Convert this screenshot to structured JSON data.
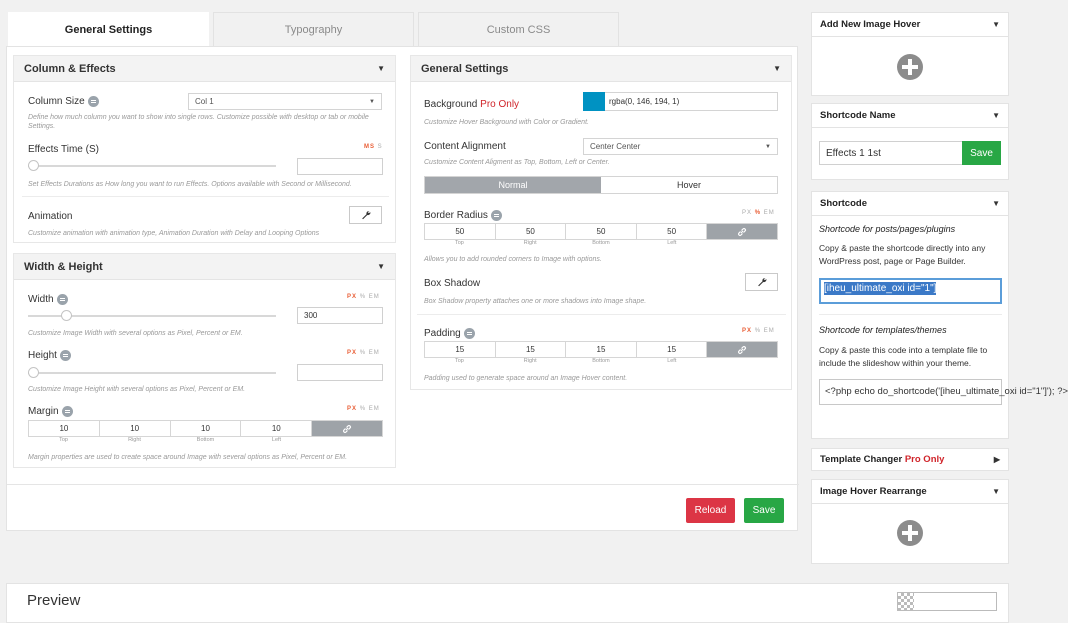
{
  "tabs": [
    {
      "label": "General Settings",
      "active": true
    },
    {
      "label": "Typography",
      "active": false
    },
    {
      "label": "Custom CSS",
      "active": false
    }
  ],
  "column_effects": {
    "title": "Column & Effects",
    "column_size": {
      "label": "Column Size",
      "value": "Col 1",
      "hint": "Define how much column you want to show into single rows. Customize possible with desktop or tab or mobile Settings."
    },
    "effects_time": {
      "label": "Effects Time (S)",
      "unit_active": "MS",
      "unit_other": "S",
      "value": "",
      "hint": "Set Effects Durations as How long you want to run Effects. Options available with Second or Millisecond."
    },
    "animation": {
      "label": "Animation",
      "hint": "Customize animation with animation type, Animation Duration with Delay and Looping Options"
    }
  },
  "width_height": {
    "title": "Width & Height",
    "width": {
      "label": "Width",
      "value": "300",
      "hint": "Customize Image Width with several options as Pixel, Percent or EM."
    },
    "height": {
      "label": "Height",
      "value": "",
      "hint": "Customize Image Height with several options as Pixel, Percent or EM."
    },
    "margin": {
      "label": "Margin",
      "values": [
        "10",
        "10",
        "10",
        "10"
      ],
      "sides": [
        "Top",
        "Right",
        "Bottom",
        "Left"
      ],
      "hint": "Margin properties are used to create space around Image with several options as Pixel, Percent or EM."
    },
    "units": [
      "PX",
      "%",
      "EM"
    ]
  },
  "general_settings": {
    "title": "General Settings",
    "background": {
      "label": "Background",
      "pro": "Pro Only",
      "swatch": "#0092c2",
      "value": "rgba(0, 146, 194, 1)",
      "hint": "Customize Hover Background with Color or Gradient."
    },
    "content_alignment": {
      "label": "Content Alignment",
      "value": "Center Center",
      "hint": "Customize Content Aligment as Top, Bottom, Left or Center."
    },
    "state": {
      "normal": "Normal",
      "hover": "Hover"
    },
    "border_radius": {
      "label": "Border Radius",
      "values": [
        "50",
        "50",
        "50",
        "50"
      ],
      "sides": [
        "Top",
        "Right",
        "Bottom",
        "Left"
      ],
      "hint": "Allows you to add rounded corners to Image with options."
    },
    "box_shadow": {
      "label": "Box Shadow",
      "hint": "Box Shadow property attaches one or more shadows into Image shape."
    },
    "padding": {
      "label": "Padding",
      "values": [
        "15",
        "15",
        "15",
        "15"
      ],
      "sides": [
        "Top",
        "Right",
        "Bottom",
        "Left"
      ],
      "hint": "Padding used to generate space around an Image Hover content."
    }
  },
  "buttons": {
    "reload": "Reload",
    "save": "Save"
  },
  "sidebar": {
    "add_new": {
      "title": "Add New Image Hover"
    },
    "shortcode_name": {
      "title": "Shortcode Name",
      "value": "Effects 1 1st",
      "save": "Save"
    },
    "shortcode": {
      "title": "Shortcode",
      "posts_title": "Shortcode for posts/pages/plugins",
      "posts_text": "Copy & paste the shortcode directly into any WordPress post, page or Page Builder.",
      "posts_code": "[iheu_ultimate_oxi id=\"1\"]",
      "templates_title": "Shortcode for templates/themes",
      "templates_text": "Copy & paste this code into a template file to include the slideshow within your theme.",
      "templates_code": "<?php echo do_shortcode('[iheu_ultimate_oxi id=\"1\"]'); ?>"
    },
    "template_changer": {
      "title": "Template Changer",
      "pro": "Pro Only"
    },
    "rearrange": {
      "title": "Image Hover Rearrange"
    }
  },
  "preview": {
    "title": "Preview"
  },
  "colors": {
    "reload": "#dc3545",
    "save": "#28a745",
    "pro": "#d0242a",
    "accent_unit": "#e95e36"
  }
}
